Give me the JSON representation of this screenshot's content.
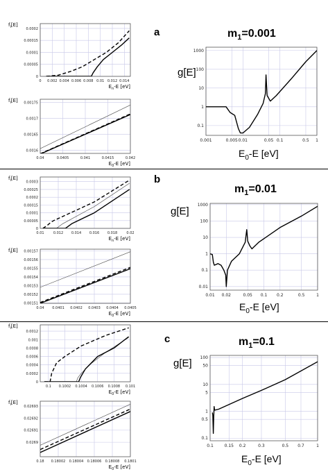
{
  "chart_data": [
    {
      "id": "a-top",
      "type": "line",
      "ylabel": "f_i[E]",
      "xlabel": "E_n-E [eV]",
      "xlim": [
        0,
        0.015
      ],
      "ylim": [
        0,
        0.00022
      ],
      "xticks": [
        "0",
        "0.002",
        "0.004",
        "0.006",
        "0.008",
        "0.01",
        "0.012",
        "0.014"
      ],
      "xtickvals": [
        0,
        0.002,
        0.004,
        0.006,
        0.008,
        0.01,
        0.012,
        0.014
      ],
      "yticks": [
        "0",
        "0.00005",
        "0.0001",
        "0.00015",
        "0.0002"
      ],
      "ytickvals": [
        0,
        5e-05,
        0.0001,
        0.00015,
        0.0002
      ],
      "series": [
        {
          "style": "dashed",
          "x": [
            0.001,
            0.003,
            0.005,
            0.007,
            0.009,
            0.011,
            0.013,
            0.0148
          ],
          "y": [
            0,
            5e-06,
            2e-05,
            4e-05,
            7e-05,
            0.0001,
            0.00014,
            0.00019
          ]
        },
        {
          "style": "solid",
          "x": [
            0.001,
            0.0085,
            0.0088,
            0.0095,
            0.0105,
            0.012,
            0.0135,
            0.0148
          ],
          "y": [
            0,
            0,
            1.5e-05,
            4e-05,
            7e-05,
            0.0001,
            0.00013,
            0.00016
          ]
        }
      ]
    },
    {
      "id": "a-bottom",
      "type": "line",
      "ylabel": "f_i[E]",
      "xlabel": "E_0-E [eV]",
      "xlim": [
        0.04,
        0.042
      ],
      "ylim": [
        0.00159,
        0.00176
      ],
      "xticks": [
        "0.04",
        "0.0405",
        "0.041",
        "0.0415",
        "0.042"
      ],
      "xtickvals": [
        0.04,
        0.0405,
        0.041,
        0.0415,
        0.042
      ],
      "yticks": [
        "0.0016",
        "0.00165",
        "0.0017",
        "0.00175"
      ],
      "ytickvals": [
        0.0016,
        0.00165,
        0.0017,
        0.00175
      ],
      "series": [
        {
          "style": "thin",
          "x": [
            0.04,
            0.042
          ],
          "y": [
            0.001605,
            0.001742
          ]
        },
        {
          "style": "dashed",
          "x": [
            0.04,
            0.042
          ],
          "y": [
            0.001589,
            0.001714
          ]
        },
        {
          "style": "solid",
          "x": [
            0.04,
            0.042
          ],
          "y": [
            0.001588,
            0.001712
          ]
        }
      ]
    },
    {
      "id": "a-main",
      "type": "line",
      "scale": "log-log",
      "title": "m_1=0.001",
      "ylabel": "g[E]",
      "xlabel": "E_0-E [eV]",
      "xlim": [
        0.001,
        1.0
      ],
      "ylim": [
        0.03,
        1500
      ],
      "xticks": [
        "0.001",
        "0.005",
        "0.01",
        "0.05",
        "0.1",
        "0.5",
        "1"
      ],
      "xtickvals": [
        0.001,
        0.005,
        0.01,
        0.05,
        0.1,
        0.5,
        1
      ],
      "yticks": [
        "0.1",
        "1",
        "10",
        "100",
        "1000"
      ],
      "ytickvals": [
        0.1,
        1,
        10,
        100,
        1000
      ],
      "series": [
        {
          "style": "solid",
          "x": [
            0.001,
            0.0025,
            0.0035,
            0.0045,
            0.006,
            0.0075,
            0.0085,
            0.01,
            0.015,
            0.025,
            0.035,
            0.0405,
            0.042,
            0.045,
            0.055,
            0.08,
            0.2,
            0.5,
            1.0
          ],
          "y": [
            1,
            1,
            1,
            0.5,
            0.35,
            0.07,
            0.04,
            0.04,
            0.08,
            0.4,
            1.5,
            5,
            50,
            4,
            2,
            4,
            30,
            250,
            1000
          ]
        }
      ]
    },
    {
      "id": "b-top",
      "type": "line",
      "ylabel": "f_i[E]",
      "xlabel": "E_n-E [eV]",
      "xlim": [
        0.01,
        0.02
      ],
      "ylim": [
        0,
        0.00033
      ],
      "xticks": [
        "0.01",
        "0.012",
        "0.014",
        "0.016",
        "0.018",
        "0.02"
      ],
      "xtickvals": [
        0.01,
        0.012,
        0.014,
        0.016,
        0.018,
        0.02
      ],
      "yticks": [
        "0",
        "0.00005",
        "0.0001",
        "0.00015",
        "0.0002",
        "0.00025",
        "0.0003"
      ],
      "ytickvals": [
        0,
        5e-05,
        0.0001,
        0.00015,
        0.0002,
        0.00025,
        0.0003
      ],
      "series": [
        {
          "style": "dashed",
          "x": [
            0.0103,
            0.0108,
            0.0112,
            0.0115,
            0.016,
            0.0199
          ],
          "y": [
            0,
            2e-05,
            4e-05,
            5e-05,
            0.00017,
            0.00031
          ]
        },
        {
          "style": "thin",
          "x": [
            0.0118,
            0.0125,
            0.016,
            0.0199
          ],
          "y": [
            0,
            3e-05,
            0.00014,
            0.00029
          ]
        },
        {
          "style": "solid",
          "x": [
            0.0103,
            0.0128,
            0.0135,
            0.016,
            0.0199
          ],
          "y": [
            0,
            0,
            3e-05,
            0.0001,
            0.00025
          ]
        }
      ]
    },
    {
      "id": "b-bottom",
      "type": "line",
      "ylabel": "f_i[E]",
      "xlabel": "E_0-E [eV]",
      "xlim": [
        0.04,
        0.0405
      ],
      "ylim": [
        0.0015095,
        0.001572
      ],
      "xticks": [
        "0.04",
        "0.0401",
        "0.0402",
        "0.0403",
        "0.0404",
        "0.0405"
      ],
      "xtickvals": [
        0.04,
        0.0401,
        0.0402,
        0.0403,
        0.0404,
        0.0405
      ],
      "yticks": [
        "0.00151",
        "0.00152",
        "0.00153",
        "0.00154",
        "0.00155",
        "0.00156",
        "0.00157"
      ],
      "ytickvals": [
        0.00151,
        0.00152,
        0.00153,
        0.00154,
        0.00155,
        0.00156,
        0.00157
      ],
      "series": [
        {
          "style": "thin",
          "x": [
            0.04,
            0.0405
          ],
          "y": [
            0.001528,
            0.001569
          ]
        },
        {
          "style": "dashed",
          "x": [
            0.04,
            0.0405
          ],
          "y": [
            0.0015105,
            0.001551
          ]
        },
        {
          "style": "solid",
          "x": [
            0.04,
            0.0405
          ],
          "y": [
            0.0015095,
            0.0015495
          ]
        }
      ]
    },
    {
      "id": "b-main",
      "type": "line",
      "scale": "log-log",
      "title": "m_1=0.01",
      "ylabel": "g[E]",
      "xlabel": "E_0-E [eV]",
      "xlim": [
        0.01,
        1.0
      ],
      "ylim": [
        0.006,
        1200
      ],
      "xticks": [
        "0.01",
        "0.02",
        "0.05",
        "0.1",
        "0.2",
        "0.5",
        "1"
      ],
      "xtickvals": [
        0.01,
        0.02,
        0.05,
        0.1,
        0.2,
        0.5,
        1
      ],
      "yticks": [
        "0.01",
        "0.1",
        "1",
        "10",
        "100",
        "1000"
      ],
      "ytickvals": [
        0.01,
        0.1,
        1,
        10,
        100,
        1000
      ],
      "series": [
        {
          "style": "solid",
          "x": [
            0.01,
            0.011,
            0.0115,
            0.012,
            0.014,
            0.016,
            0.018,
            0.0195,
            0.02,
            0.021,
            0.025,
            0.035,
            0.045,
            0.048,
            0.05,
            0.055,
            0.06,
            0.08,
            0.2,
            0.5,
            1.0
          ],
          "y": [
            1,
            0.9,
            0.3,
            0.2,
            0.25,
            0.2,
            0.1,
            0.05,
            0.01,
            0.1,
            0.35,
            1,
            5,
            30,
            6,
            3,
            2,
            5,
            40,
            200,
            800
          ]
        }
      ]
    },
    {
      "id": "c-top",
      "type": "line",
      "ylabel": "f_i[E]",
      "xlabel": "E_0-E [eV]",
      "xlim": [
        0.0999,
        0.101
      ],
      "ylim": [
        0,
        0.00135
      ],
      "xticks": [
        "0.1",
        "0.1002",
        "0.1004",
        "0.1006",
        "0.1008",
        "0.101"
      ],
      "xtickvals": [
        0.1,
        0.1002,
        0.1004,
        0.1006,
        0.1008,
        0.101
      ],
      "yticks": [
        "0",
        "0.0002",
        "0.0004",
        "0.0006",
        "0.0008",
        "0.001",
        "0.0012"
      ],
      "ytickvals": [
        0,
        0.0002,
        0.0004,
        0.0006,
        0.0008,
        0.001,
        0.0012
      ],
      "series": [
        {
          "style": "dashed",
          "x": [
            0.09995,
            0.10002,
            0.10004,
            0.1001,
            0.1002,
            0.1004,
            0.1007,
            0.10098
          ],
          "y": [
            0,
            0,
            0.0002,
            0.00045,
            0.0006,
            0.00085,
            0.0011,
            0.00128
          ]
        },
        {
          "style": "thin",
          "x": [
            0.10034,
            0.10036,
            0.1004,
            0.1005,
            0.1007,
            0.10098
          ],
          "y": [
            0,
            0.0001,
            0.0002,
            0.0004,
            0.0007,
            0.00105
          ]
        },
        {
          "style": "solid",
          "x": [
            0.09995,
            0.10037,
            0.10039,
            0.10045,
            0.1006,
            0.1008,
            0.10098
          ],
          "y": [
            0,
            0,
            0.0001,
            0.0003,
            0.0006,
            0.0008,
            0.00107
          ]
        }
      ]
    },
    {
      "id": "c-bottom",
      "type": "line",
      "ylabel": "f_i[E]",
      "xlabel": "E_0-E [eV]",
      "xlim": [
        0.18,
        0.1801
      ],
      "ylim": [
        0.026888,
        0.026934
      ],
      "xticks": [
        "0.18",
        "0.18002",
        "0.18004",
        "0.18006",
        "0.18008",
        "0.1801"
      ],
      "xtickvals": [
        0.18,
        0.18002,
        0.18004,
        0.18006,
        0.18008,
        0.1801
      ],
      "yticks": [
        "0.0269",
        "0.02691",
        "0.02692",
        "0.02693"
      ],
      "ytickvals": [
        0.0269,
        0.02691,
        0.02692,
        0.02693
      ],
      "series": [
        {
          "style": "thin",
          "x": [
            0.18,
            0.1801
          ],
          "y": [
            0.0268975,
            0.0269315
          ]
        },
        {
          "style": "dashed",
          "x": [
            0.18,
            0.1801
          ],
          "y": [
            0.026894,
            0.0269275
          ]
        },
        {
          "style": "solid",
          "x": [
            0.18,
            0.1801
          ],
          "y": [
            0.0268915,
            0.0269255
          ]
        }
      ]
    },
    {
      "id": "c-main",
      "type": "line",
      "scale": "log-log",
      "title": "m_1=0.1",
      "ylabel": "g[E]",
      "xlabel": "E_0-E [eV]",
      "xlim": [
        0.1,
        1.0
      ],
      "ylim": [
        0.08,
        120
      ],
      "xticks": [
        "0.1",
        "0.15",
        "0.2",
        "0.3",
        "0.5",
        "0.7",
        "1"
      ],
      "xtickvals": [
        0.1,
        0.15,
        0.2,
        0.3,
        0.5,
        0.7,
        1
      ],
      "yticks": [
        "0.1",
        "0.5",
        "1",
        "5",
        "10",
        "50",
        "100"
      ],
      "ytickvals": [
        0.1,
        0.5,
        1,
        5,
        10,
        50,
        100
      ],
      "series": [
        {
          "style": "solid",
          "x": [
            0.105,
            0.106,
            0.107,
            0.108,
            0.109,
            0.11,
            0.12,
            0.2,
            0.3,
            0.5,
            1.0
          ],
          "y": [
            0.9,
            0.7,
            0.15,
            0.6,
            1.5,
            1.1,
            1.2,
            3,
            6,
            15,
            70
          ]
        }
      ]
    }
  ],
  "labels": {
    "a": "a",
    "b": "b",
    "c": "c",
    "title_a_main": "m",
    "title_a_sub": "1",
    "title_a_rest": "=0.001",
    "title_b_main": "m",
    "title_b_sub": "1",
    "title_b_rest": "=0.01",
    "title_c_main": "m",
    "title_c_sub": "1",
    "title_c_rest": "=0.1",
    "g_label": "g[E]",
    "x_big_main": "E",
    "x_big_sub": "0",
    "x_big_rest": "-E [eV]"
  }
}
